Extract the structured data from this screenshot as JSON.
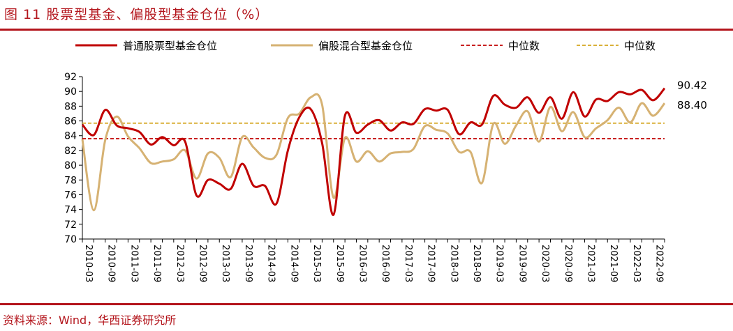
{
  "header": {
    "title": "图 11  股票型基金、偏股型基金仓位（%）"
  },
  "footer": {
    "source": "资料来源：Wind，华西证券研究所"
  },
  "colors": {
    "brand": "#b3141b",
    "series_red": "#c00000",
    "series_tan": "#d6b273",
    "median_red": "#c00000",
    "median_gold": "#d4a51c",
    "axis": "#000000"
  },
  "chart_data": {
    "type": "line",
    "title": "",
    "xlabel": "",
    "ylabel": "",
    "ylim": [
      70,
      92
    ],
    "yticks": [
      70,
      72,
      74,
      76,
      78,
      80,
      82,
      84,
      86,
      88,
      90,
      92
    ],
    "x_tick_labels": [
      "2010-03",
      "2010-09",
      "2011-03",
      "2011-09",
      "2012-03",
      "2012-09",
      "2013-03",
      "2013-09",
      "2014-03",
      "2014-09",
      "2015-03",
      "2015-09",
      "2016-03",
      "2016-09",
      "2017-03",
      "2017-09",
      "2018-03",
      "2018-09",
      "2019-03",
      "2019-09",
      "2020-03",
      "2020-09",
      "2021-03",
      "2021-09",
      "2022-03",
      "2022-09"
    ],
    "grid": false,
    "legend_position": "top",
    "x_start": "2010-03",
    "x_step_months": 3,
    "series": [
      {
        "name": "普通股票型基金仓位",
        "style": "solid",
        "values": [
          85.5,
          84.1,
          87.5,
          85.4,
          85.0,
          84.5,
          82.8,
          83.8,
          82.7,
          83.2,
          75.9,
          78.0,
          77.5,
          76.8,
          80.2,
          77.2,
          77.2,
          74.8,
          82.0,
          86.5,
          87.6,
          83.0,
          73.3,
          86.7,
          84.4,
          85.5,
          86.1,
          84.7,
          85.8,
          85.6,
          87.6,
          87.4,
          87.5,
          84.2,
          85.8,
          85.5,
          89.4,
          88.2,
          87.8,
          89.2,
          87.1,
          89.2,
          86.3,
          89.9,
          86.6,
          88.9,
          88.7,
          89.9,
          89.6,
          90.2,
          88.8,
          90.42
        ]
      },
      {
        "name": "偏股混合型基金仓位",
        "style": "solid",
        "values": [
          83.5,
          73.9,
          83.4,
          86.6,
          83.9,
          82.3,
          80.3,
          80.5,
          80.8,
          82.0,
          78.2,
          81.6,
          81.0,
          78.4,
          83.8,
          82.4,
          81.0,
          81.4,
          86.4,
          87.0,
          89.2,
          88.2,
          75.6,
          83.7,
          80.5,
          81.9,
          80.5,
          81.6,
          81.8,
          82.2,
          85.3,
          84.8,
          84.3,
          81.8,
          81.8,
          77.6,
          85.6,
          82.9,
          85.4,
          87.3,
          83.2,
          87.9,
          84.6,
          87.2,
          83.8,
          85.0,
          86.1,
          87.8,
          85.8,
          88.4,
          86.7,
          88.4
        ]
      },
      {
        "name": "中位数",
        "style": "dashed",
        "constant": 83.6,
        "color_key": "median_red"
      },
      {
        "name": "中位数",
        "style": "dashed",
        "constant": 85.7,
        "color_key": "median_gold"
      }
    ],
    "end_labels": [
      {
        "series": "普通股票型基金仓位",
        "text": "90.42"
      },
      {
        "series": "偏股混合型基金仓位",
        "text": "88.40"
      }
    ]
  }
}
